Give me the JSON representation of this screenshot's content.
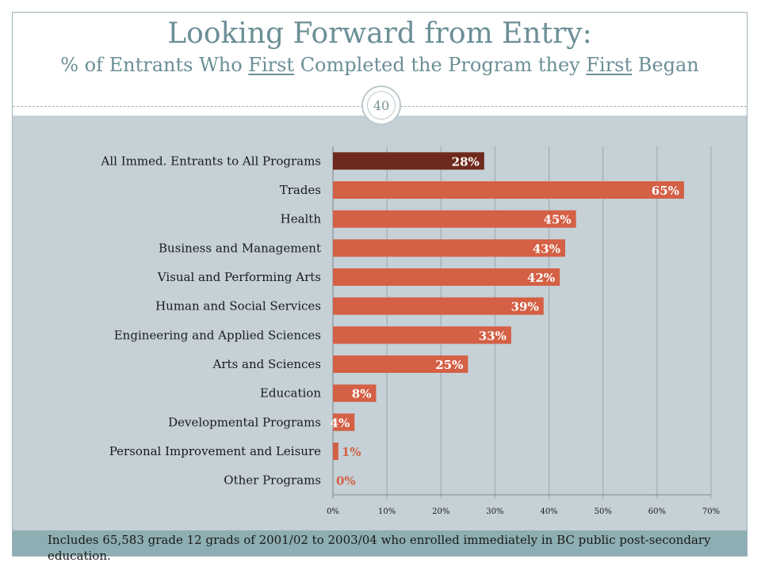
{
  "slide": {
    "title": "Looking Forward from Entry:",
    "subtitle": {
      "part1": "% of Entrants Who ",
      "em1": "First",
      "part2": " Completed the Program they ",
      "em2": "First",
      "part3": " Began"
    },
    "page_number": "40",
    "footnote": "Includes 65,583 grade 12 grads of 2001/02 to 2003/04 who enrolled immediately in BC public post-secondary education."
  },
  "colors": {
    "highlight_bar": "#6e2a1c",
    "bar": "#d46045",
    "small_value_label": "#d46045",
    "panel": "#c5d1d7",
    "gridline": "#9aa6ab"
  },
  "chart_data": {
    "type": "bar",
    "orientation": "horizontal",
    "categories": [
      "All Immed. Entrants to All Programs",
      "Trades",
      "Health",
      "Business and Management",
      "Visual and Performing Arts",
      "Human and Social Services",
      "Engineering and Applied Sciences",
      "Arts and Sciences",
      "Education",
      "Developmental Programs",
      "Personal Improvement and Leisure",
      "Other Programs"
    ],
    "values": [
      28,
      65,
      45,
      43,
      42,
      39,
      33,
      25,
      8,
      4,
      1,
      0
    ],
    "value_labels": [
      "28%",
      "65%",
      "45%",
      "43%",
      "42%",
      "39%",
      "33%",
      "25%",
      "8%",
      "4%",
      "1%",
      "0%"
    ],
    "highlight_index": 0,
    "xlim": [
      0,
      70
    ],
    "xticks": [
      0,
      10,
      20,
      30,
      40,
      50,
      60,
      70
    ],
    "xtick_labels": [
      "0%",
      "10%",
      "20%",
      "30%",
      "40%",
      "50%",
      "60%",
      "70%"
    ],
    "grid": "vertical",
    "xlabel": "",
    "ylabel": ""
  }
}
